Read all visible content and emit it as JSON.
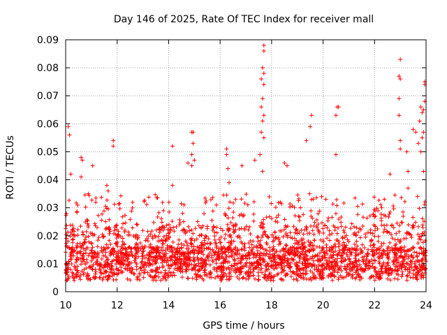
{
  "chart_data": {
    "type": "scatter",
    "title": "Day 146 of 2025, Rate Of TEC Index for receiver mall",
    "xlabel": "GPS time / hours",
    "ylabel": "ROTI / TECUs",
    "xlim": [
      10,
      24
    ],
    "ylim": [
      0,
      0.09
    ],
    "xticks": [
      "10",
      "12",
      "14",
      "16",
      "18",
      "20",
      "22",
      "24"
    ],
    "yticks": [
      "0",
      "0.01",
      "0.02",
      "0.03",
      "0.04",
      "0.05",
      "0.06",
      "0.07",
      "0.08",
      "0.09"
    ],
    "grid": true,
    "marker": "+",
    "color": "#ff0000",
    "series": [
      {
        "name": "ROTI",
        "points": [
          [
            10.1,
            0.059
          ],
          [
            10.15,
            0.056
          ],
          [
            10.2,
            0.042
          ],
          [
            10.6,
            0.048
          ],
          [
            10.65,
            0.047
          ],
          [
            10.6,
            0.041
          ],
          [
            11.05,
            0.045
          ],
          [
            11.6,
            0.038
          ],
          [
            11.65,
            0.036
          ],
          [
            11.85,
            0.054
          ],
          [
            11.85,
            0.052
          ],
          [
            14.15,
            0.052
          ],
          [
            14.15,
            0.038
          ],
          [
            14.75,
            0.046
          ],
          [
            14.9,
            0.057
          ],
          [
            14.95,
            0.057
          ],
          [
            14.95,
            0.053
          ],
          [
            14.9,
            0.049
          ],
          [
            15.0,
            0.047
          ],
          [
            14.9,
            0.045
          ],
          [
            16.25,
            0.051
          ],
          [
            16.25,
            0.049
          ],
          [
            16.3,
            0.044
          ],
          [
            16.35,
            0.039
          ],
          [
            16.85,
            0.045
          ],
          [
            17.35,
            0.047
          ],
          [
            17.7,
            0.088
          ],
          [
            17.7,
            0.086
          ],
          [
            17.65,
            0.08
          ],
          [
            17.7,
            0.078
          ],
          [
            17.6,
            0.076
          ],
          [
            17.7,
            0.074
          ],
          [
            17.65,
            0.069
          ],
          [
            17.6,
            0.066
          ],
          [
            17.7,
            0.063
          ],
          [
            17.65,
            0.061
          ],
          [
            17.6,
            0.057
          ],
          [
            17.7,
            0.055
          ],
          [
            17.55,
            0.049
          ],
          [
            17.65,
            0.043
          ],
          [
            18.5,
            0.046
          ],
          [
            18.6,
            0.045
          ],
          [
            19.35,
            0.054
          ],
          [
            19.55,
            0.063
          ],
          [
            19.5,
            0.059
          ],
          [
            20.55,
            0.066
          ],
          [
            20.6,
            0.066
          ],
          [
            20.5,
            0.063
          ],
          [
            20.5,
            0.049
          ],
          [
            22.6,
            0.042
          ],
          [
            23.0,
            0.083
          ],
          [
            22.95,
            0.077
          ],
          [
            23.0,
            0.076
          ],
          [
            22.95,
            0.069
          ],
          [
            22.95,
            0.063
          ],
          [
            23.0,
            0.054
          ],
          [
            23.0,
            0.051
          ],
          [
            23.25,
            0.05
          ],
          [
            23.3,
            0.043
          ],
          [
            23.3,
            0.037
          ],
          [
            23.5,
            0.058
          ],
          [
            23.6,
            0.057
          ],
          [
            23.7,
            0.053
          ],
          [
            23.75,
            0.061
          ],
          [
            23.8,
            0.066
          ],
          [
            23.85,
            0.064
          ],
          [
            23.95,
            0.075
          ],
          [
            23.95,
            0.074
          ],
          [
            23.95,
            0.068
          ],
          [
            23.9,
            0.065
          ],
          [
            23.9,
            0.057
          ],
          [
            23.85,
            0.055
          ],
          [
            23.8,
            0.05
          ],
          [
            23.9,
            0.043
          ]
        ]
      }
    ]
  }
}
